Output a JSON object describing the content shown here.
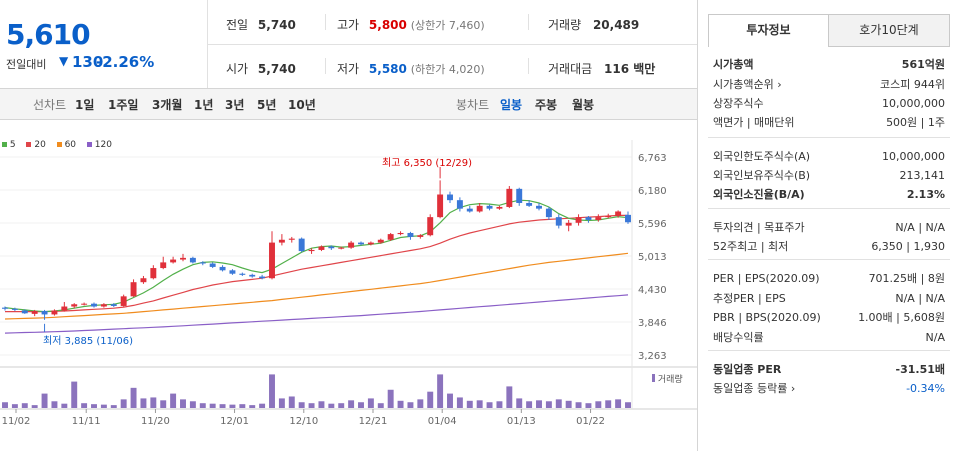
{
  "quote": {
    "price": "5,610",
    "change_label": "전일대비",
    "change_arrow": "▼",
    "change": "130",
    "change_pct": "-2.26%"
  },
  "summary": {
    "prev_label": "전일",
    "prev": "5,740",
    "high_label": "고가",
    "high": "5,800",
    "upper_limit": "(상한가 7,460)",
    "volume_label": "거래량",
    "volume": "20,489",
    "open_label": "시가",
    "open": "5,740",
    "low_label": "저가",
    "low": "5,580",
    "lower_limit": "(하한가 4,020)",
    "amount_label": "거래대금",
    "amount": "116 백만"
  },
  "periods": {
    "line_label": "선차트",
    "items": [
      "1일",
      "1주일",
      "3개월",
      "1년",
      "3년",
      "5년",
      "10년"
    ],
    "candle_label": "봉차트",
    "candle_items": [
      "일봉",
      "주봉",
      "월봉"
    ],
    "candle_active": "일봉"
  },
  "tabs": {
    "info": "투자정보",
    "orderbook": "호가10단계"
  },
  "info": {
    "rows": [
      {
        "label": "시가총액",
        "value": "561억원"
      },
      {
        "label": "시가총액순위 ›",
        "value": "코스피 944위"
      },
      {
        "label": "상장주식수",
        "value": "10,000,000"
      },
      {
        "label": "액면가 | 매매단위",
        "value": "500원 | 1주"
      },
      {
        "label": "외국인한도주식수(A)",
        "value": "10,000,000"
      },
      {
        "label": "외국인보유주식수(B)",
        "value": "213,141"
      },
      {
        "label": "외국인소진율(B/A)",
        "value": "2.13%"
      },
      {
        "label": "투자의견 | 목표주가",
        "value": "N/A | N/A"
      },
      {
        "label": "52주최고 | 최저",
        "value": "6,350 | 1,930"
      },
      {
        "label": "PER | EPS(2020.09)",
        "value": "701.25배 | 8원"
      },
      {
        "label": "추정PER | EPS",
        "value": "N/A | N/A"
      },
      {
        "label": "PBR | BPS(2020.09)",
        "value": "1.00배 | 5,608원"
      },
      {
        "label": "배당수익률",
        "value": "N/A"
      },
      {
        "label": "동일업종 PER",
        "value": "-31.51배"
      },
      {
        "label": "동일업종 등락률 ›",
        "value": "-0.34%"
      }
    ]
  },
  "legend": [
    "5",
    "20",
    "60",
    "120"
  ],
  "colors": {
    "ma5": "#52b04a",
    "ma20": "#e0454a",
    "ma60": "#f08c1e",
    "ma120": "#8a5fc7",
    "up": "#e0303a",
    "down": "#3a78d8",
    "volume": "#8b73bd"
  },
  "annotations": {
    "high": "최고 6,350 (12/29)",
    "low": "최저 3,885 (11/06)"
  },
  "volume_label": "거래량",
  "chart_data": {
    "type": "line",
    "y_ticks": [
      "6,763",
      "6,180",
      "5,596",
      "5,013",
      "4,430",
      "3,846",
      "3,263"
    ],
    "x_ticks": [
      "11/02",
      "11/11",
      "11/20",
      "12/01",
      "12/10",
      "12/21",
      "01/04",
      "01/13",
      "01/22"
    ],
    "ylim": [
      3263,
      6763
    ],
    "candles": [
      [
        4100,
        4080,
        4120,
        4050
      ],
      [
        4080,
        4060,
        4100,
        4040
      ],
      [
        4050,
        4000,
        4070,
        3990
      ],
      [
        3990,
        4040,
        4060,
        3950
      ],
      [
        4040,
        3980,
        4060,
        3885
      ],
      [
        3980,
        4050,
        4070,
        3960
      ],
      [
        4050,
        4120,
        4200,
        4030
      ],
      [
        4120,
        4160,
        4180,
        4090
      ],
      [
        4160,
        4170,
        4190,
        4140
      ],
      [
        4170,
        4120,
        4190,
        4100
      ],
      [
        4120,
        4160,
        4180,
        4100
      ],
      [
        4160,
        4130,
        4180,
        4110
      ],
      [
        4130,
        4300,
        4330,
        4120
      ],
      [
        4300,
        4550,
        4600,
        4290
      ],
      [
        4550,
        4620,
        4660,
        4520
      ],
      [
        4620,
        4800,
        4850,
        4600
      ],
      [
        4800,
        4900,
        5000,
        4780
      ],
      [
        4900,
        4950,
        5000,
        4880
      ],
      [
        4950,
        4980,
        5050,
        4920
      ],
      [
        4980,
        4900,
        5000,
        4880
      ],
      [
        4900,
        4880,
        4920,
        4850
      ],
      [
        4880,
        4820,
        4900,
        4800
      ],
      [
        4820,
        4760,
        4850,
        4740
      ],
      [
        4760,
        4700,
        4780,
        4680
      ],
      [
        4700,
        4680,
        4720,
        4660
      ],
      [
        4680,
        4650,
        4700,
        4630
      ],
      [
        4650,
        4620,
        4680,
        4600
      ],
      [
        4620,
        5250,
        5450,
        4600
      ],
      [
        5250,
        5300,
        5400,
        5200
      ],
      [
        5300,
        5320,
        5350,
        5250
      ],
      [
        5320,
        5100,
        5340,
        5080
      ],
      [
        5100,
        5120,
        5150,
        5050
      ],
      [
        5120,
        5180,
        5200,
        5100
      ],
      [
        5180,
        5150,
        5200,
        5120
      ],
      [
        5150,
        5160,
        5180,
        5130
      ],
      [
        5160,
        5250,
        5280,
        5140
      ],
      [
        5250,
        5220,
        5270,
        5200
      ],
      [
        5220,
        5250,
        5270,
        5200
      ],
      [
        5250,
        5300,
        5320,
        5230
      ],
      [
        5300,
        5400,
        5420,
        5280
      ],
      [
        5400,
        5420,
        5450,
        5380
      ],
      [
        5420,
        5350,
        5440,
        5300
      ],
      [
        5350,
        5380,
        5400,
        5320
      ],
      [
        5380,
        5700,
        5750,
        5360
      ],
      [
        5700,
        6100,
        6350,
        5680
      ],
      [
        6100,
        6000,
        6150,
        5950
      ],
      [
        6000,
        5850,
        6050,
        5800
      ],
      [
        5850,
        5800,
        5900,
        5780
      ],
      [
        5800,
        5900,
        5950,
        5780
      ],
      [
        5900,
        5850,
        5920,
        5820
      ],
      [
        5850,
        5880,
        5900,
        5830
      ],
      [
        5880,
        6200,
        6250,
        5860
      ],
      [
        6200,
        5950,
        6220,
        5900
      ],
      [
        5950,
        5900,
        6000,
        5880
      ],
      [
        5900,
        5850,
        5950,
        5820
      ],
      [
        5850,
        5700,
        5880,
        5650
      ],
      [
        5700,
        5550,
        5750,
        5500
      ],
      [
        5550,
        5600,
        5650,
        5450
      ],
      [
        5600,
        5700,
        5750,
        5550
      ],
      [
        5700,
        5650,
        5720,
        5600
      ],
      [
        5650,
        5700,
        5750,
        5620
      ],
      [
        5700,
        5720,
        5760,
        5680
      ],
      [
        5720,
        5800,
        5820,
        5690
      ],
      [
        5740,
        5610,
        5800,
        5580
      ]
    ],
    "ma5": [
      4100,
      4080,
      4060,
      4040,
      4030,
      4040,
      4060,
      4090,
      4120,
      4140,
      4150,
      4160,
      4200,
      4280,
      4360,
      4460,
      4580,
      4690,
      4780,
      4860,
      4900,
      4910,
      4890,
      4860,
      4800,
      4750,
      4720,
      4780,
      4880,
      4980,
      5080,
      5150,
      5180,
      5190,
      5170,
      5180,
      5200,
      5220,
      5240,
      5290,
      5340,
      5360,
      5370,
      5440,
      5600,
      5780,
      5870,
      5920,
      5940,
      5930,
      5910,
      5960,
      6000,
      5990,
      5950,
      5880,
      5760,
      5680,
      5650,
      5640,
      5650,
      5680,
      5710,
      5690
    ],
    "ma20": [
      4030,
      4030,
      4030,
      4030,
      4030,
      4035,
      4040,
      4050,
      4060,
      4070,
      4080,
      4090,
      4110,
      4140,
      4180,
      4220,
      4270,
      4320,
      4370,
      4420,
      4460,
      4500,
      4530,
      4560,
      4580,
      4600,
      4620,
      4660,
      4700,
      4740,
      4780,
      4810,
      4840,
      4870,
      4900,
      4930,
      4960,
      4990,
      5020,
      5050,
      5080,
      5110,
      5140,
      5180,
      5240,
      5310,
      5370,
      5420,
      5460,
      5500,
      5540,
      5580,
      5610,
      5630,
      5650,
      5660,
      5670,
      5680,
      5690,
      5700,
      5710,
      5720,
      5730,
      5730
    ],
    "ma60": [
      3900,
      3905,
      3910,
      3915,
      3920,
      3930,
      3940,
      3950,
      3960,
      3970,
      3980,
      3990,
      4000,
      4015,
      4030,
      4045,
      4060,
      4075,
      4090,
      4105,
      4120,
      4135,
      4150,
      4165,
      4180,
      4195,
      4210,
      4225,
      4245,
      4265,
      4285,
      4305,
      4325,
      4345,
      4365,
      4385,
      4405,
      4425,
      4445,
      4465,
      4485,
      4505,
      4525,
      4550,
      4580,
      4610,
      4640,
      4670,
      4700,
      4730,
      4760,
      4790,
      4820,
      4850,
      4875,
      4900,
      4920,
      4940,
      4960,
      4980,
      5000,
      5020,
      5040,
      5060
    ],
    "ma120": [
      3650,
      3655,
      3660,
      3665,
      3670,
      3675,
      3680,
      3688,
      3696,
      3704,
      3712,
      3720,
      3728,
      3736,
      3744,
      3752,
      3760,
      3770,
      3780,
      3790,
      3800,
      3810,
      3820,
      3830,
      3840,
      3850,
      3860,
      3870,
      3880,
      3890,
      3900,
      3910,
      3920,
      3930,
      3940,
      3950,
      3960,
      3972,
      3984,
      3996,
      4008,
      4020,
      4032,
      4046,
      4060,
      4074,
      4088,
      4102,
      4116,
      4130,
      4144,
      4158,
      4172,
      4186,
      4200,
      4214,
      4228,
      4242,
      4256,
      4270,
      4284,
      4298,
      4312,
      4326
    ],
    "volume": [
      12,
      8,
      10,
      6,
      30,
      14,
      9,
      55,
      10,
      8,
      7,
      6,
      18,
      42,
      20,
      22,
      16,
      30,
      18,
      14,
      10,
      9,
      8,
      7,
      8,
      6,
      9,
      70,
      20,
      24,
      12,
      10,
      14,
      9,
      10,
      16,
      12,
      20,
      10,
      38,
      15,
      12,
      18,
      34,
      70,
      30,
      22,
      15,
      16,
      12,
      14,
      45,
      20,
      14,
      16,
      14,
      18,
      15,
      12,
      10,
      14,
      16,
      18,
      12
    ]
  }
}
